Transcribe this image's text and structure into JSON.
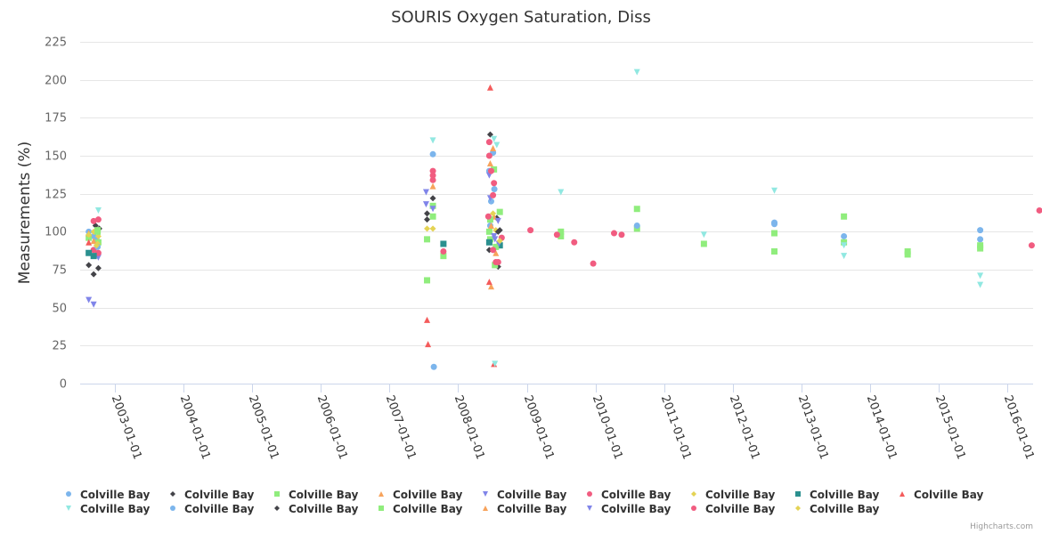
{
  "chart_data": {
    "type": "scatter",
    "title": "SOURIS Oxygen Saturation, Diss",
    "xlabel": "",
    "ylabel": "Measurements (%)",
    "ylim": [
      0,
      225
    ],
    "yticks": [
      0,
      25,
      50,
      75,
      100,
      125,
      150,
      175,
      200,
      225
    ],
    "xlim": [
      "2002-06-01",
      "2016-07-01"
    ],
    "xticks": [
      "2003-01-01",
      "2004-01-01",
      "2005-01-01",
      "2006-01-01",
      "2007-01-01",
      "2008-01-01",
      "2009-01-01",
      "2010-01-01",
      "2011-01-01",
      "2012-01-01",
      "2013-01-01",
      "2014-01-01",
      "2015-01-01",
      "2016-01-01"
    ],
    "grid": true,
    "legend": "bottom",
    "credits": "Highcharts.com",
    "series": [
      {
        "name": "Colville Bay",
        "color": "#7cb5ec",
        "symbol": "circle",
        "points": [
          [
            "2002-08-15",
            100
          ],
          [
            "2002-09-10",
            97
          ],
          [
            "2002-09-25",
            95
          ],
          [
            "2007-08-20",
            151
          ],
          [
            "2007-08-25",
            11
          ],
          [
            "2008-06-15",
            140
          ],
          [
            "2008-06-25",
            120
          ],
          [
            "2008-07-05",
            152
          ],
          [
            "2008-07-12",
            128
          ],
          [
            "2012-08-10",
            106
          ],
          [
            "2012-08-10",
            105
          ],
          [
            "2013-08-15",
            97
          ],
          [
            "2015-08-10",
            101
          ],
          [
            "2015-08-10",
            95
          ]
        ]
      },
      {
        "name": "Colville Bay",
        "color": "#434348",
        "symbol": "diamond",
        "points": [
          [
            "2002-08-15",
            78
          ],
          [
            "2002-09-10",
            72
          ],
          [
            "2002-09-20",
            104
          ],
          [
            "2002-10-05",
            76
          ],
          [
            "2002-10-10",
            102
          ],
          [
            "2007-07-20",
            112
          ],
          [
            "2007-07-20",
            108
          ],
          [
            "2007-08-20",
            122
          ],
          [
            "2008-06-20",
            164
          ],
          [
            "2008-07-25",
            109
          ],
          [
            "2008-08-01",
            77
          ],
          [
            "2008-08-10",
            101
          ]
        ]
      },
      {
        "name": "Colville Bay",
        "color": "#90ed7d",
        "symbol": "square",
        "points": [
          [
            "2002-08-15",
            96
          ],
          [
            "2002-10-01",
            101
          ],
          [
            "2002-10-05",
            93
          ],
          [
            "2007-07-20",
            95
          ],
          [
            "2007-07-20",
            68
          ],
          [
            "2007-08-20",
            110
          ],
          [
            "2007-08-20",
            117
          ],
          [
            "2007-10-15",
            84
          ],
          [
            "2008-06-15",
            100
          ],
          [
            "2008-06-20",
            95
          ],
          [
            "2008-07-10",
            141
          ],
          [
            "2008-07-15",
            78
          ],
          [
            "2008-08-10",
            113
          ],
          [
            "2009-07-01",
            100
          ],
          [
            "2009-07-01",
            97
          ],
          [
            "2010-08-10",
            115
          ],
          [
            "2010-08-10",
            102
          ],
          [
            "2011-08-01",
            92
          ],
          [
            "2012-08-10",
            99
          ],
          [
            "2012-08-10",
            87
          ],
          [
            "2013-08-15",
            110
          ],
          [
            "2013-08-15",
            93
          ],
          [
            "2014-07-20",
            87
          ],
          [
            "2014-07-20",
            85
          ],
          [
            "2015-08-10",
            91
          ],
          [
            "2015-08-10",
            89
          ]
        ]
      },
      {
        "name": "Colville Bay",
        "color": "#f7a35c",
        "symbol": "triangle",
        "points": [
          [
            "2002-08-15",
            99
          ],
          [
            "2007-08-20",
            130
          ],
          [
            "2007-08-20",
            135
          ],
          [
            "2008-06-20",
            145
          ],
          [
            "2008-06-25",
            64
          ],
          [
            "2008-07-05",
            155
          ],
          [
            "2008-07-10",
            110
          ],
          [
            "2008-07-20",
            86
          ]
        ]
      },
      {
        "name": "Colville Bay",
        "color": "#8085e9",
        "symbol": "triangle-down",
        "points": [
          [
            "2002-08-15",
            55
          ],
          [
            "2002-09-10",
            52
          ],
          [
            "2002-10-01",
            84
          ],
          [
            "2002-10-05",
            83
          ],
          [
            "2007-07-15",
            126
          ],
          [
            "2007-07-15",
            118
          ],
          [
            "2007-08-20",
            115
          ],
          [
            "2008-06-15",
            137
          ],
          [
            "2008-06-20",
            122
          ],
          [
            "2008-07-15",
            95
          ],
          [
            "2008-08-01",
            107
          ]
        ]
      },
      {
        "name": "Colville Bay",
        "color": "#f15c80",
        "symbol": "circle",
        "points": [
          [
            "2002-09-10",
            107
          ],
          [
            "2002-09-10",
            88
          ],
          [
            "2002-10-05",
            108
          ],
          [
            "2002-10-05",
            86
          ],
          [
            "2007-08-20",
            140
          ],
          [
            "2007-08-20",
            137
          ],
          [
            "2007-08-20",
            134
          ],
          [
            "2007-10-15",
            87
          ],
          [
            "2008-06-15",
            159
          ],
          [
            "2008-06-15",
            150
          ],
          [
            "2008-06-25",
            140
          ],
          [
            "2008-07-05",
            124
          ],
          [
            "2008-07-10",
            132
          ],
          [
            "2008-07-20",
            80
          ],
          [
            "2008-08-01",
            80
          ],
          [
            "2008-08-20",
            96
          ],
          [
            "2009-01-20",
            101
          ],
          [
            "2009-06-10",
            98
          ],
          [
            "2009-09-10",
            93
          ],
          [
            "2009-12-20",
            79
          ],
          [
            "2010-04-10",
            99
          ],
          [
            "2010-05-20",
            98
          ],
          [
            "2016-05-10",
            91
          ],
          [
            "2016-06-20",
            114
          ]
        ]
      },
      {
        "name": "Colville Bay",
        "color": "#e4d354",
        "symbol": "diamond",
        "points": [
          [
            "2002-08-15",
            98
          ],
          [
            "2002-09-10",
            100
          ],
          [
            "2002-10-01",
            92
          ],
          [
            "2002-10-05",
            97
          ],
          [
            "2007-07-20",
            102
          ],
          [
            "2007-08-20",
            102
          ],
          [
            "2008-07-05",
            112
          ],
          [
            "2008-07-20",
            101
          ]
        ]
      },
      {
        "name": "Colville Bay",
        "color": "#2b908f",
        "symbol": "square",
        "points": [
          [
            "2002-08-15",
            86
          ],
          [
            "2002-09-10",
            84
          ],
          [
            "2007-10-15",
            92
          ],
          [
            "2008-06-15",
            93
          ],
          [
            "2008-08-10",
            91
          ]
        ]
      },
      {
        "name": "Colville Bay",
        "color": "#f45b5b",
        "symbol": "triangle",
        "points": [
          [
            "2002-08-15",
            93
          ],
          [
            "2007-07-20",
            42
          ],
          [
            "2007-07-25",
            26
          ],
          [
            "2008-06-20",
            195
          ],
          [
            "2008-06-15",
            67
          ],
          [
            "2008-07-10",
            13
          ]
        ]
      },
      {
        "name": "Colville Bay",
        "color": "#91e8e1",
        "symbol": "triangle-down",
        "points": [
          [
            "2002-10-05",
            114
          ],
          [
            "2007-08-20",
            160
          ],
          [
            "2008-07-10",
            161
          ],
          [
            "2008-07-25",
            157
          ],
          [
            "2008-07-15",
            13
          ],
          [
            "2009-07-01",
            126
          ],
          [
            "2010-08-10",
            205
          ],
          [
            "2011-08-01",
            98
          ],
          [
            "2012-08-10",
            127
          ],
          [
            "2013-08-15",
            91
          ],
          [
            "2013-08-15",
            84
          ],
          [
            "2015-08-10",
            71
          ],
          [
            "2015-08-10",
            65
          ]
        ]
      },
      {
        "name": "Colville Bay",
        "color": "#7cb5ec",
        "symbol": "circle",
        "points": [
          [
            "2002-10-01",
            90
          ],
          [
            "2008-06-20",
            104
          ],
          [
            "2010-08-10",
            104
          ]
        ]
      },
      {
        "name": "Colville Bay",
        "color": "#434348",
        "symbol": "diamond",
        "points": [
          [
            "2008-06-15",
            88
          ],
          [
            "2008-08-01",
            100
          ]
        ]
      },
      {
        "name": "Colville Bay",
        "color": "#90ed7d",
        "symbol": "square",
        "points": [
          [
            "2002-10-01",
            100
          ],
          [
            "2008-06-20",
            108
          ],
          [
            "2008-07-20",
            90
          ]
        ]
      },
      {
        "name": "Colville Bay",
        "color": "#f7a35c",
        "symbol": "triangle",
        "points": [
          [
            "2002-09-10",
            94
          ],
          [
            "2008-06-25",
            104
          ]
        ]
      },
      {
        "name": "Colville Bay",
        "color": "#8085e9",
        "symbol": "triangle-down",
        "points": [
          [
            "2008-07-10",
            97
          ],
          [
            "2008-08-05",
            92
          ]
        ]
      },
      {
        "name": "Colville Bay",
        "color": "#f15c80",
        "symbol": "circle",
        "points": [
          [
            "2008-06-10",
            110
          ],
          [
            "2008-07-05",
            88
          ]
        ]
      },
      {
        "name": "Colville Bay",
        "color": "#e4d354",
        "symbol": "diamond",
        "points": [
          [
            "2002-09-25",
            91
          ],
          [
            "2008-08-10",
            94
          ]
        ]
      }
    ]
  }
}
